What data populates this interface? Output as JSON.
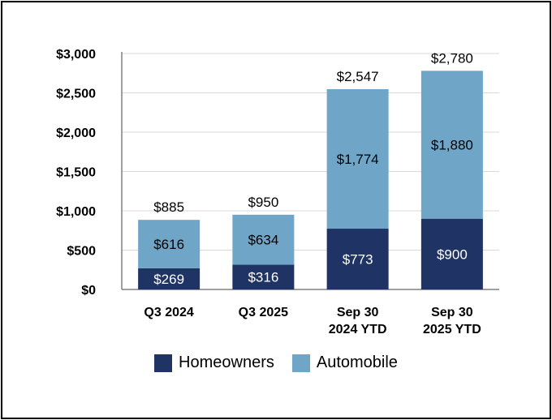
{
  "chart_data": {
    "type": "bar",
    "stacked": true,
    "categories": [
      [
        "Q3 2024"
      ],
      [
        "Q3 2025"
      ],
      [
        "Sep 30",
        "2024 YTD"
      ],
      [
        "Sep 30",
        "2025 YTD"
      ]
    ],
    "series": [
      {
        "name": "Homeowners",
        "color": "#1F3464",
        "values": [
          269,
          316,
          773,
          900
        ],
        "labels": [
          "$269",
          "$316",
          "$773",
          "$900"
        ]
      },
      {
        "name": "Automobile",
        "color": "#6FA6C8",
        "values": [
          616,
          634,
          1774,
          1880
        ],
        "labels": [
          "$616",
          "$634",
          "$1,774",
          "$1,880"
        ]
      }
    ],
    "totals": [
      885,
      950,
      2547,
      2780
    ],
    "total_labels": [
      "$885",
      "$950",
      "$2,547",
      "$2,780"
    ],
    "yticks": [
      0,
      500,
      1000,
      1500,
      2000,
      2500,
      3000
    ],
    "ytick_labels": [
      "$0",
      "$500",
      "$1,000",
      "$1,500",
      "$2,000",
      "$2,500",
      "$3,000"
    ],
    "ylim": [
      0,
      3000
    ],
    "grid": true,
    "legend": "bottom-center"
  }
}
